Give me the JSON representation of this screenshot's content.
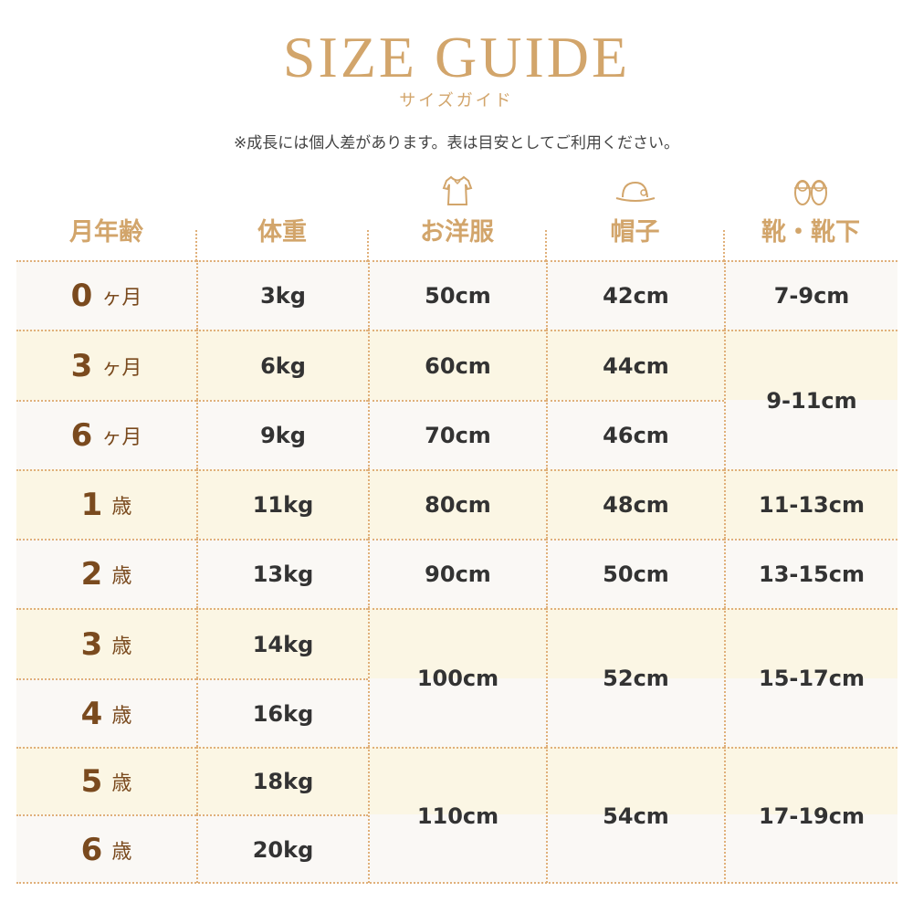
{
  "title": "SIZE GUIDE",
  "subtitle": "サイズガイド",
  "note": "※成長には個人差があります。表は目安としてご利用ください。",
  "colors": {
    "gold": "#d2a56b",
    "brown": "#7a4a1e",
    "text": "#333333",
    "row_light": "#faf8f5",
    "row_cream": "#fbf6e4"
  },
  "headers": [
    {
      "label": "月年齢",
      "icon": ""
    },
    {
      "label": "体重",
      "icon": ""
    },
    {
      "label": "お洋服",
      "icon": "dress-icon"
    },
    {
      "label": "帽子",
      "icon": "hat-icon"
    },
    {
      "label": "靴・靴下",
      "icon": "baby-shoes-icon"
    }
  ],
  "ages": [
    {
      "num": "0",
      "unit": "ヶ月"
    },
    {
      "num": "3",
      "unit": "ヶ月"
    },
    {
      "num": "6",
      "unit": "ヶ月"
    },
    {
      "num": "1",
      "unit": "歳"
    },
    {
      "num": "2",
      "unit": "歳"
    },
    {
      "num": "3",
      "unit": "歳"
    },
    {
      "num": "4",
      "unit": "歳"
    },
    {
      "num": "5",
      "unit": "歳"
    },
    {
      "num": "6",
      "unit": "歳"
    }
  ],
  "columns": [
    {
      "name": "weight",
      "cells": [
        {
          "value": "3kg",
          "span": 1
        },
        {
          "value": "6kg",
          "span": 1
        },
        {
          "value": "9kg",
          "span": 1
        },
        {
          "value": "11kg",
          "span": 1
        },
        {
          "value": "13kg",
          "span": 1
        },
        {
          "value": "14kg",
          "span": 1
        },
        {
          "value": "16kg",
          "span": 1
        },
        {
          "value": "18kg",
          "span": 1
        },
        {
          "value": "20kg",
          "span": 1
        }
      ]
    },
    {
      "name": "clothes",
      "cells": [
        {
          "value": "50cm",
          "span": 1
        },
        {
          "value": "60cm",
          "span": 1
        },
        {
          "value": "70cm",
          "span": 1
        },
        {
          "value": "80cm",
          "span": 1
        },
        {
          "value": "90cm",
          "span": 1
        },
        {
          "value": "100cm",
          "span": 2
        },
        {
          "value": "110cm",
          "span": 2
        }
      ]
    },
    {
      "name": "hat",
      "cells": [
        {
          "value": "42cm",
          "span": 1
        },
        {
          "value": "44cm",
          "span": 1
        },
        {
          "value": "46cm",
          "span": 1
        },
        {
          "value": "48cm",
          "span": 1
        },
        {
          "value": "50cm",
          "span": 1
        },
        {
          "value": "52cm",
          "span": 2
        },
        {
          "value": "54cm",
          "span": 2
        }
      ]
    },
    {
      "name": "shoes",
      "cells": [
        {
          "value": "7-9cm",
          "span": 1
        },
        {
          "value": "9-11cm",
          "span": 2
        },
        {
          "value": "11-13cm",
          "span": 1
        },
        {
          "value": "13-15cm",
          "span": 1
        },
        {
          "value": "15-17cm",
          "span": 2
        },
        {
          "value": "17-19cm",
          "span": 2
        }
      ]
    }
  ]
}
